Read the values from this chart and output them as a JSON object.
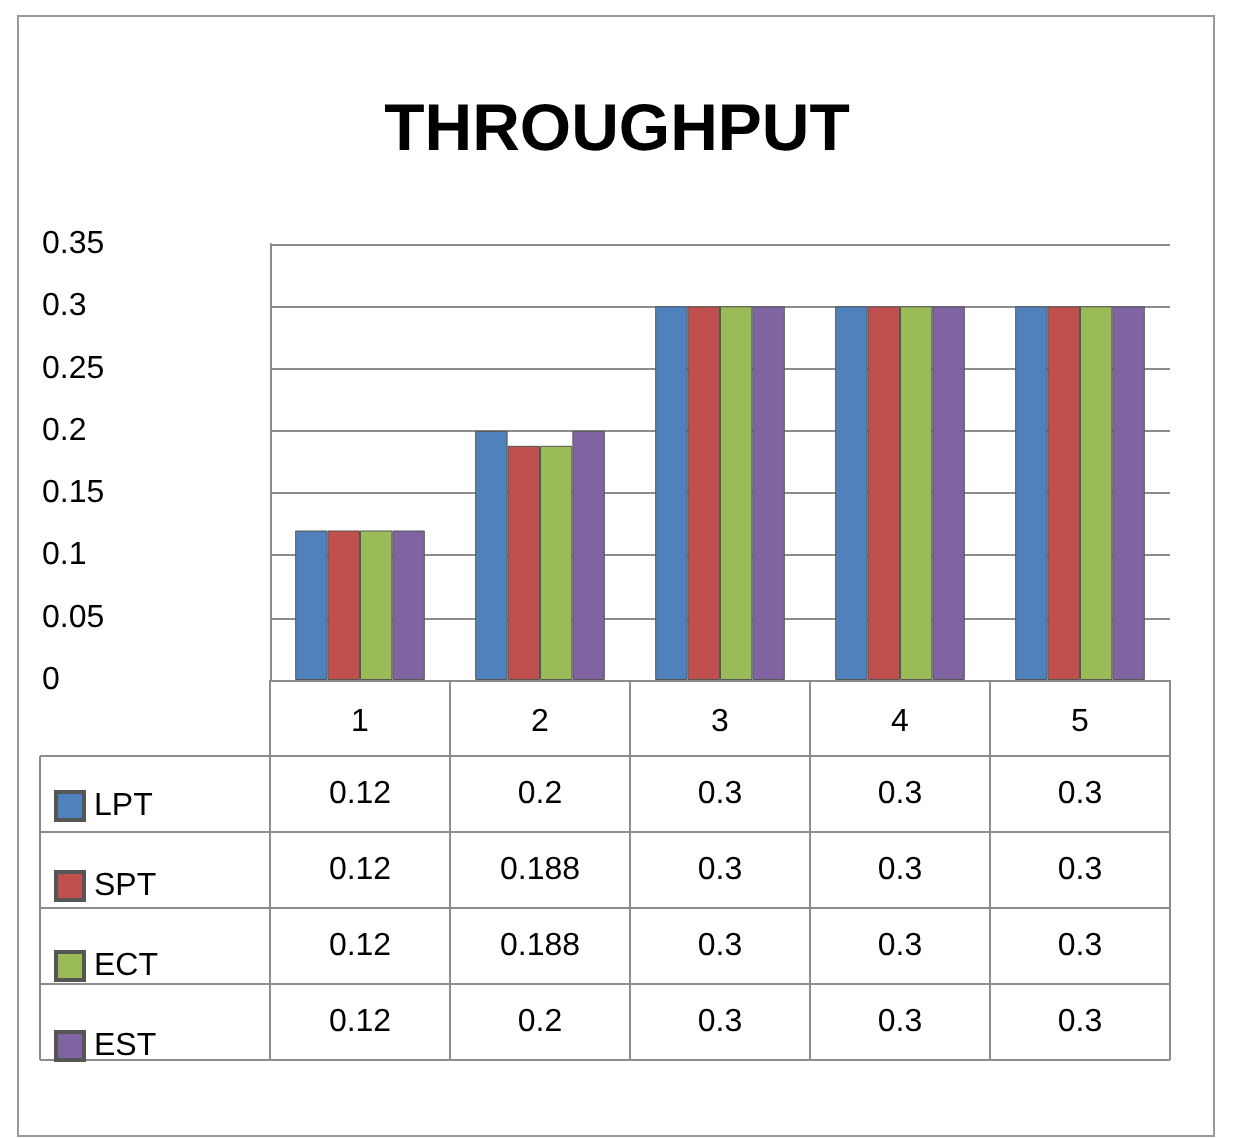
{
  "chart_data": {
    "type": "bar",
    "title": "THROUGHPUT",
    "categories": [
      "1",
      "2",
      "3",
      "4",
      "5"
    ],
    "series": [
      {
        "name": "LPT",
        "color": "#4f81bd",
        "values": [
          0.12,
          0.2,
          0.3,
          0.3,
          0.3
        ]
      },
      {
        "name": "SPT",
        "color": "#c0504d",
        "values": [
          0.12,
          0.188,
          0.3,
          0.3,
          0.3
        ]
      },
      {
        "name": "ECT",
        "color": "#9bbb59",
        "values": [
          0.12,
          0.188,
          0.3,
          0.3,
          0.3
        ]
      },
      {
        "name": "EST",
        "color": "#8064a2",
        "values": [
          0.12,
          0.2,
          0.3,
          0.3,
          0.3
        ]
      }
    ],
    "ylim": [
      0,
      0.35
    ],
    "yticks": [
      0,
      0.05,
      0.1,
      0.15,
      0.2,
      0.25,
      0.3,
      0.35
    ],
    "grid": "y",
    "legend": "bottom",
    "data_labels": true
  }
}
